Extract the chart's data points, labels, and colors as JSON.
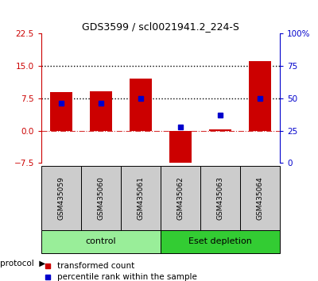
{
  "title": "GDS3599 / scl0021941.2_224-S",
  "samples": [
    "GSM435059",
    "GSM435060",
    "GSM435061",
    "GSM435062",
    "GSM435063",
    "GSM435064"
  ],
  "bar_values": [
    9.0,
    9.2,
    12.0,
    -8.5,
    0.3,
    16.2
  ],
  "percentile_pcts": [
    46,
    46,
    50,
    28,
    37,
    50
  ],
  "left_ylim": [
    -7.5,
    22.5
  ],
  "right_ylim": [
    0,
    100
  ],
  "left_yticks": [
    -7.5,
    0,
    7.5,
    15,
    22.5
  ],
  "right_yticks": [
    0,
    25,
    50,
    75,
    100
  ],
  "right_yticklabels": [
    "0",
    "25",
    "50",
    "75",
    "100%"
  ],
  "hline1": 15.0,
  "hline2": 7.5,
  "hline_zero": 0.0,
  "bar_color": "#cc0000",
  "percentile_color": "#0000cc",
  "group1_label": "control",
  "group2_label": "Eset depletion",
  "group1_color": "#99ee99",
  "group2_color": "#33cc33",
  "group1_indices": [
    0,
    1,
    2
  ],
  "group2_indices": [
    3,
    4,
    5
  ],
  "protocol_label": "protocol",
  "legend_bar_label": "transformed count",
  "legend_pct_label": "percentile rank within the sample",
  "bar_width": 0.55,
  "sample_bg_color": "#cccccc",
  "figsize": [
    4.0,
    3.54
  ],
  "dpi": 100
}
